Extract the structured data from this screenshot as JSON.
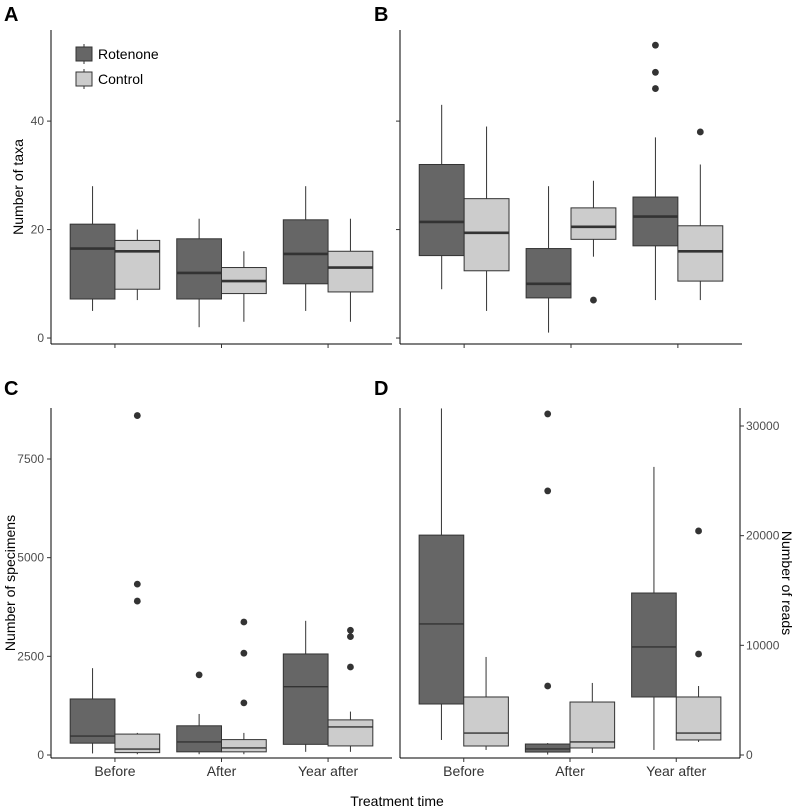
{
  "figure": {
    "x_title": "Treatment time"
  },
  "legend": {
    "items": [
      {
        "label": "Rotenone",
        "color": "#666666"
      },
      {
        "label": "Control",
        "color": "#CCCCCC"
      }
    ]
  },
  "colors": {
    "box_stroke": "#333333",
    "outlier": "#333333"
  },
  "chart_data": [
    {
      "label": "A",
      "type": "box",
      "ylabel": "Number of taxa",
      "y_axis_side": "left",
      "show_y_tick_labels": true,
      "show_x_tick_labels": false,
      "yticks": [
        0,
        20,
        40
      ],
      "ylim": [
        -1.1,
        56.8
      ],
      "categories": [
        "Before",
        "After",
        "Year after"
      ],
      "series": [
        {
          "name": "Rotenone",
          "boxes": [
            {
              "min": 5,
              "q1": 7.2,
              "median": 16.5,
              "q3": 21,
              "max": 28,
              "outliers": []
            },
            {
              "min": 2,
              "q1": 7.2,
              "median": 12,
              "q3": 18.3,
              "max": 22,
              "outliers": []
            },
            {
              "min": 5,
              "q1": 10,
              "median": 15.5,
              "q3": 21.8,
              "max": 28,
              "outliers": []
            }
          ]
        },
        {
          "name": "Control",
          "boxes": [
            {
              "min": 7,
              "q1": 9,
              "median": 16,
              "q3": 18,
              "max": 20,
              "outliers": []
            },
            {
              "min": 3,
              "q1": 8.2,
              "median": 10.5,
              "q3": 13,
              "max": 16,
              "outliers": []
            },
            {
              "min": 3,
              "q1": 8.5,
              "median": 13,
              "q3": 16,
              "max": 22,
              "outliers": []
            }
          ]
        }
      ]
    },
    {
      "label": "B",
      "type": "box",
      "y_axis_side": "left",
      "show_y_tick_labels": false,
      "show_x_tick_labels": false,
      "yticks": [
        0,
        20,
        40
      ],
      "ylim": [
        -1.1,
        56.8
      ],
      "categories": [
        "Before",
        "After",
        "Year after"
      ],
      "series": [
        {
          "name": "Rotenone",
          "boxes": [
            {
              "min": 9,
              "q1": 15.2,
              "median": 21.4,
              "q3": 32,
              "max": 43,
              "outliers": []
            },
            {
              "min": 1,
              "q1": 7.4,
              "median": 10,
              "q3": 16.5,
              "max": 28,
              "outliers": []
            },
            {
              "min": 7,
              "q1": 17,
              "median": 22.4,
              "q3": 26,
              "max": 37,
              "outliers": [
                46,
                49,
                54
              ]
            }
          ]
        },
        {
          "name": "Control",
          "boxes": [
            {
              "min": 5,
              "q1": 12.4,
              "median": 19.4,
              "q3": 25.7,
              "max": 39,
              "outliers": []
            },
            {
              "min": 15,
              "q1": 18.2,
              "median": 20.5,
              "q3": 24,
              "max": 29,
              "outliers": [
                7
              ]
            },
            {
              "min": 7,
              "q1": 10.5,
              "median": 16,
              "q3": 20.7,
              "max": 32,
              "outliers": [
                38
              ]
            }
          ]
        }
      ]
    },
    {
      "label": "C",
      "type": "box",
      "ylabel": "Number of specimens",
      "y_axis_side": "left",
      "show_y_tick_labels": true,
      "show_x_tick_labels": true,
      "yticks": [
        0,
        2500,
        5000,
        7500
      ],
      "ylim": [
        -76,
        8792
      ],
      "categories": [
        "Before",
        "After",
        "Year after"
      ],
      "series": [
        {
          "name": "Rotenone",
          "boxes": [
            {
              "min": 40,
              "q1": 300,
              "median": 480,
              "q3": 1420,
              "max": 2200,
              "outliers": []
            },
            {
              "min": 20,
              "q1": 80,
              "median": 330,
              "q3": 740,
              "max": 1040,
              "outliers": [
                2030
              ]
            },
            {
              "min": 80,
              "q1": 270,
              "median": 1730,
              "q3": 2560,
              "max": 3400,
              "outliers": []
            }
          ]
        },
        {
          "name": "Control",
          "boxes": [
            {
              "min": 20,
              "q1": 60,
              "median": 150,
              "q3": 530,
              "max": 560,
              "outliers": [
                3900,
                4330,
                8600
              ]
            },
            {
              "min": 20,
              "q1": 80,
              "median": 180,
              "q3": 390,
              "max": 560,
              "outliers": [
                1320,
                2580,
                3370
              ]
            },
            {
              "min": 80,
              "q1": 230,
              "median": 710,
              "q3": 890,
              "max": 1100,
              "outliers": [
                2230,
                3000,
                3160
              ]
            }
          ]
        }
      ]
    },
    {
      "label": "D",
      "type": "box",
      "ylabel": "Number of reads",
      "y_axis_side": "right",
      "show_y_tick_labels": true,
      "show_x_tick_labels": true,
      "yticks": [
        0,
        10000,
        20000,
        30000
      ],
      "ylim": [
        -274,
        31640
      ],
      "categories": [
        "Before",
        "After",
        "Year after"
      ],
      "series": [
        {
          "name": "Rotenone",
          "boxes": [
            {
              "min": 1370,
              "q1": 4650,
              "median": 11950,
              "q3": 20050,
              "max": 31600,
              "outliers": []
            },
            {
              "min": 40,
              "q1": 270,
              "median": 550,
              "q3": 1000,
              "max": 1090,
              "outliers": [
                6290,
                24080,
                31100
              ]
            },
            {
              "min": 460,
              "q1": 5290,
              "median": 9850,
              "q3": 14770,
              "max": 26270,
              "outliers": []
            }
          ]
        },
        {
          "name": "Control",
          "boxes": [
            {
              "min": 460,
              "q1": 820,
              "median": 2000,
              "q3": 5290,
              "max": 8940,
              "outliers": []
            },
            {
              "min": 180,
              "q1": 640,
              "median": 1190,
              "q3": 4830,
              "max": 6570,
              "outliers": []
            },
            {
              "min": 1190,
              "q1": 1370,
              "median": 2000,
              "q3": 5290,
              "max": 6290,
              "outliers": [
                9210,
                20430
              ]
            }
          ]
        }
      ]
    }
  ]
}
